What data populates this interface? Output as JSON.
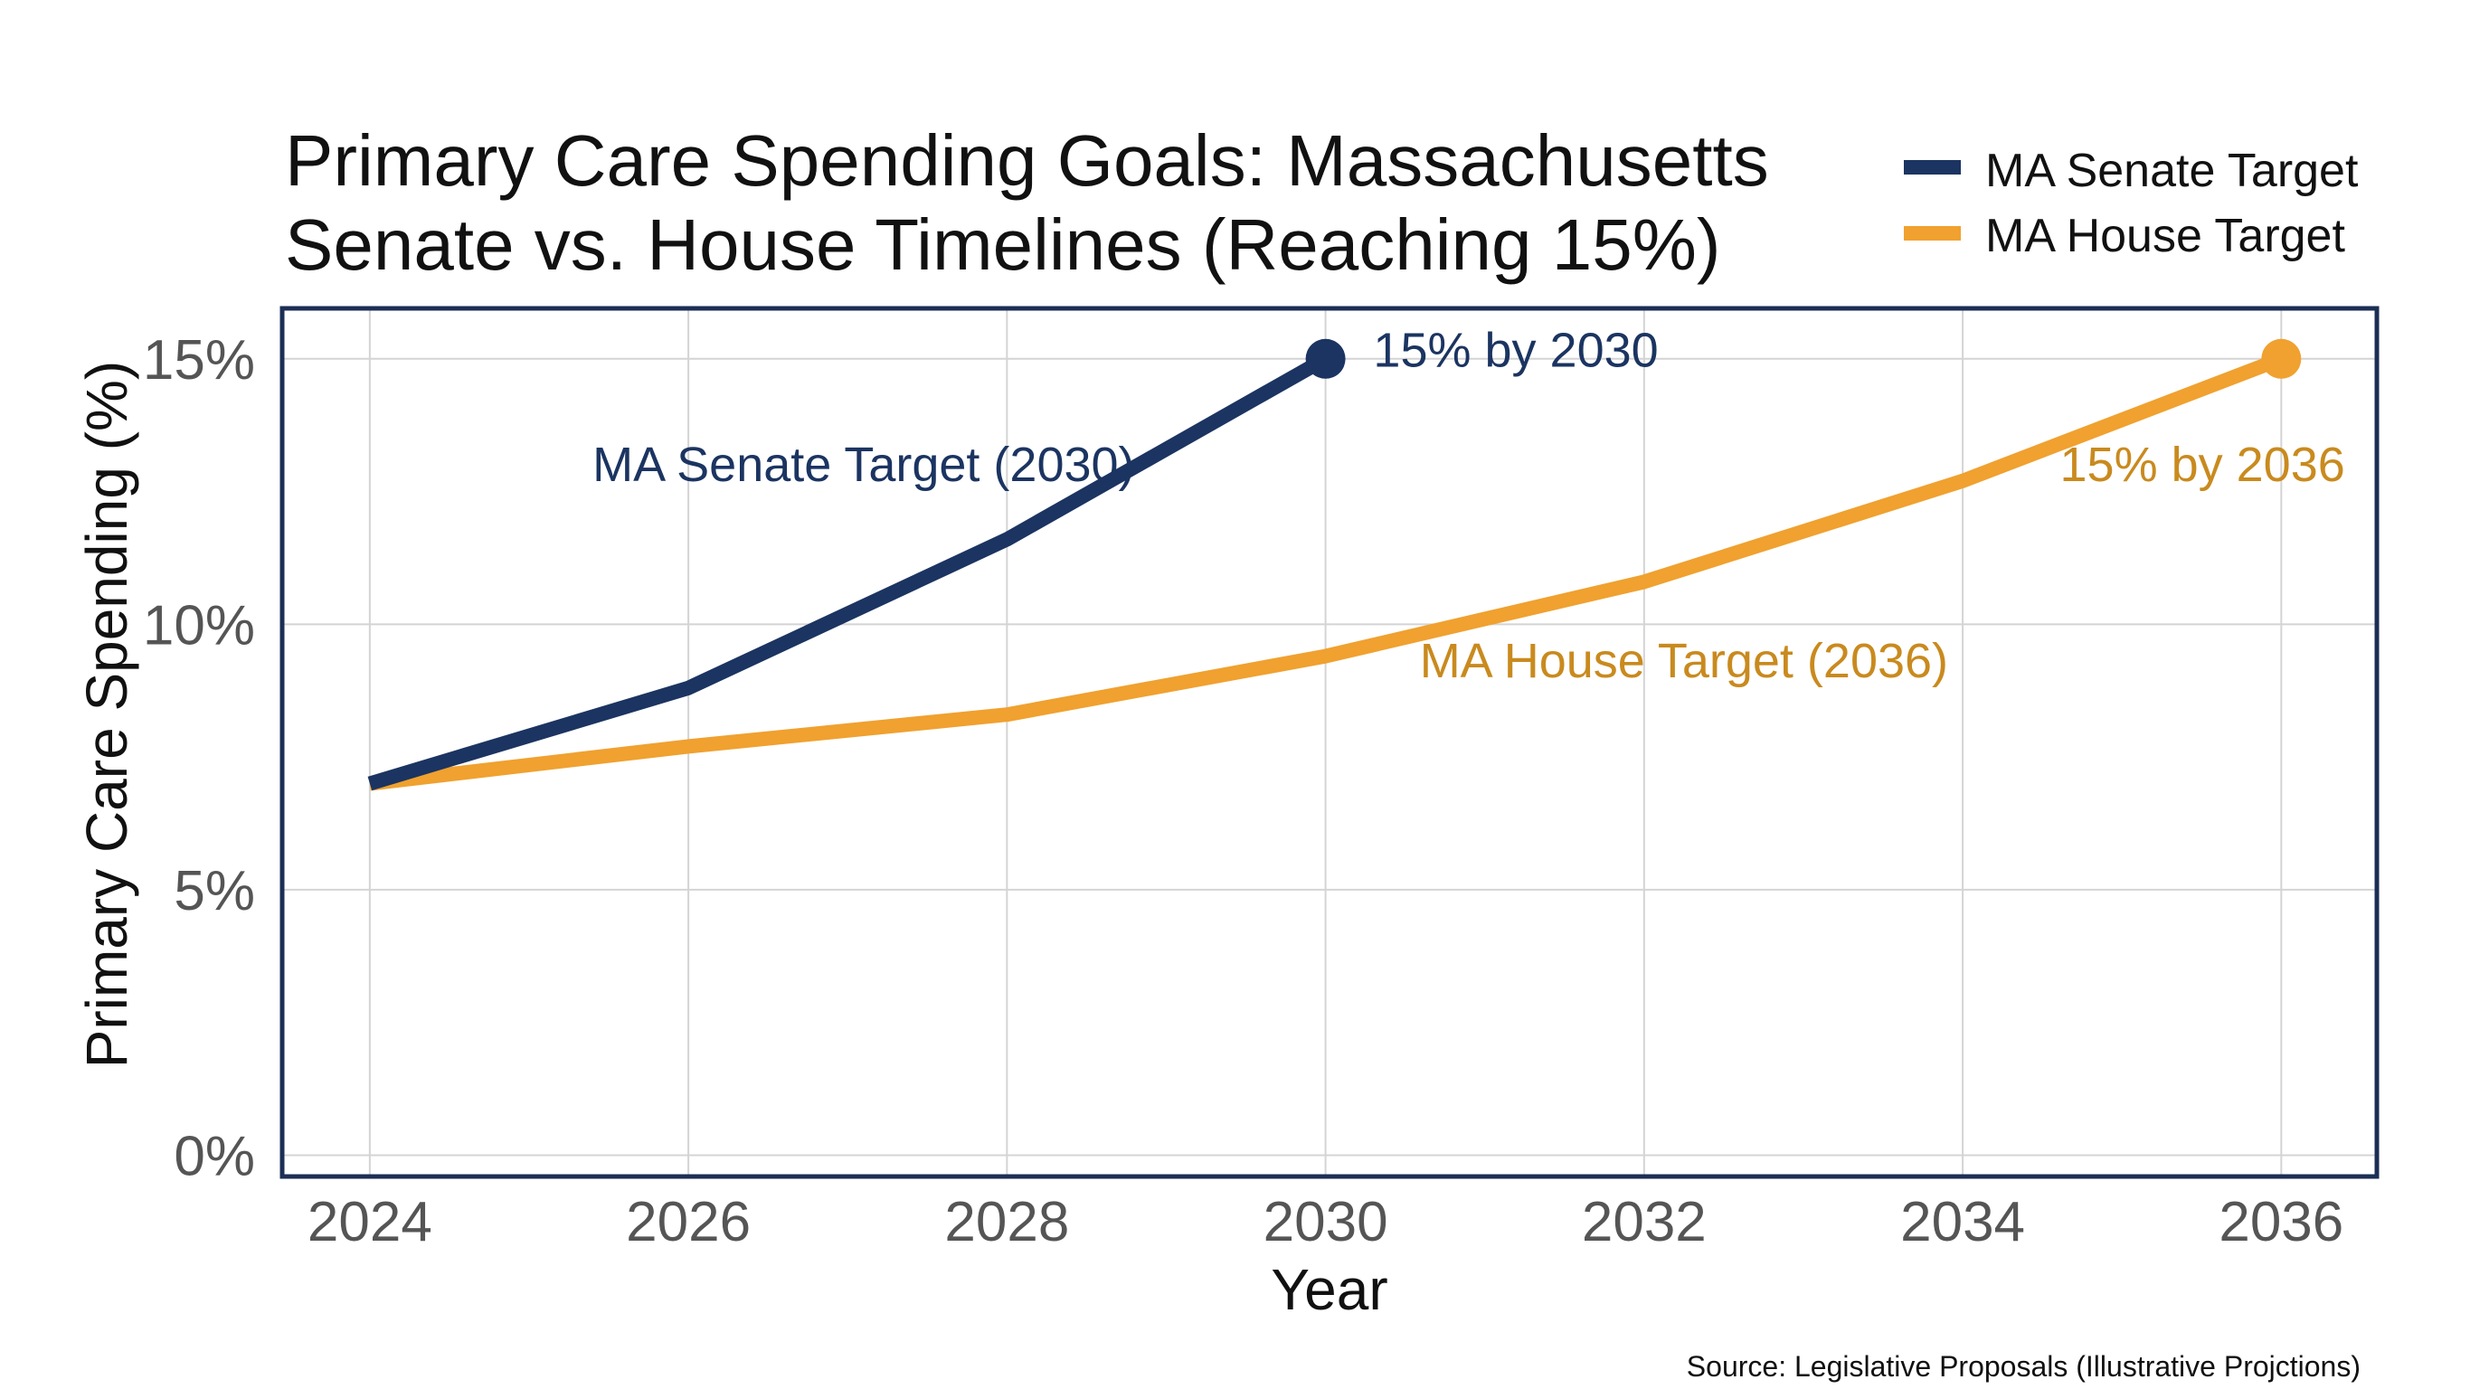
{
  "chart_data": {
    "type": "line",
    "title_lines": [
      "Primary Care Spending Goals: Massachusetts",
      "Senate vs. House Timelines (Reaching 15%)"
    ],
    "xlabel": "Year",
    "ylabel": "Primary Care Spending (%)",
    "x_ticks": [
      "2024",
      "2026",
      "2028",
      "2030",
      "2032",
      "2034",
      "2036"
    ],
    "y_ticks": [
      "0%",
      "5%",
      "10%",
      "15%"
    ],
    "xlim": [
      2023.45,
      2036.6
    ],
    "ylim": [
      -0.4,
      15.95
    ],
    "grid": true,
    "legend_position": "top-right",
    "series": [
      {
        "name": "MA Senate Target",
        "color": "#1b3461",
        "x": [
          2024,
          2026,
          2028,
          2030
        ],
        "y": [
          7.0,
          8.8,
          11.6,
          15.0
        ],
        "end_marker": true
      },
      {
        "name": "MA House Target",
        "color": "#f0a12f",
        "x": [
          2024,
          2026,
          2028,
          2030,
          2032,
          2034,
          2036
        ],
        "y": [
          7.0,
          7.7,
          8.3,
          9.4,
          10.8,
          12.7,
          15.0
        ],
        "end_marker": true
      }
    ],
    "annotations": [
      {
        "text": "MA Senate Target (2030)",
        "color": "#1b3461",
        "x": 2027.1,
        "y": 12.7,
        "anchor": "middle"
      },
      {
        "text": "15% by 2030",
        "color": "#1b3461",
        "x": 2030.3,
        "y": 14.85,
        "anchor": "start"
      },
      {
        "text": "MA House Target (2036)",
        "color": "#c98a1e",
        "x": 2032.25,
        "y": 9.0,
        "anchor": "middle"
      },
      {
        "text": "15% by 2036",
        "color": "#c98a1e",
        "x": 2036.4,
        "y": 12.7,
        "anchor": "end"
      }
    ],
    "source": "Source: Legislative Proposals (Illustrative Projctions)"
  },
  "colors": {
    "frame": "#1b2e55",
    "senate": "#1b3461",
    "house": "#f0a12f"
  }
}
